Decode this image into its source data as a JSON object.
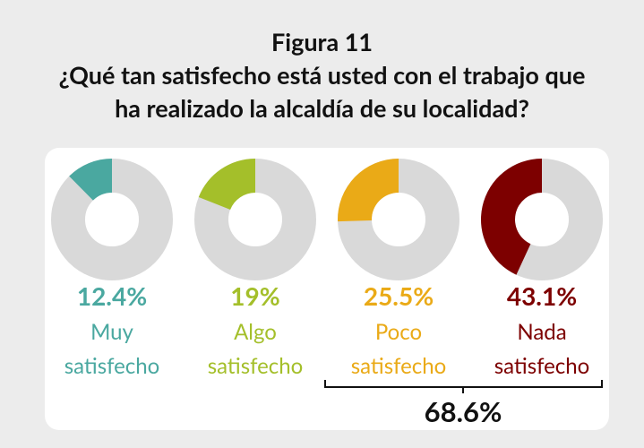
{
  "chart_data": {
    "type": "donut",
    "title": "Figura 11",
    "subtitle": "¿Qué tan satisfecho está usted con el trabajo que ha realizado la alcaldía de su localidad?",
    "series": [
      {
        "name": "Muy satisfecho",
        "color": "#4aa8a0",
        "values": [
          12.4
        ],
        "value_labels": [
          "12.4%"
        ]
      },
      {
        "name": "Algo satisfecho",
        "color": "#a4bf2a",
        "values": [
          19
        ],
        "value_labels": [
          "19%"
        ]
      },
      {
        "name": "Poco satisfecho",
        "color": "#eaaa17",
        "values": [
          25.5
        ],
        "value_labels": [
          "25.5%"
        ]
      },
      {
        "name": "Nada satisfecho",
        "color": "#7d0000",
        "values": [
          43.1
        ],
        "value_labels": [
          "43.1%"
        ]
      }
    ],
    "annotation": "68.6%"
  }
}
